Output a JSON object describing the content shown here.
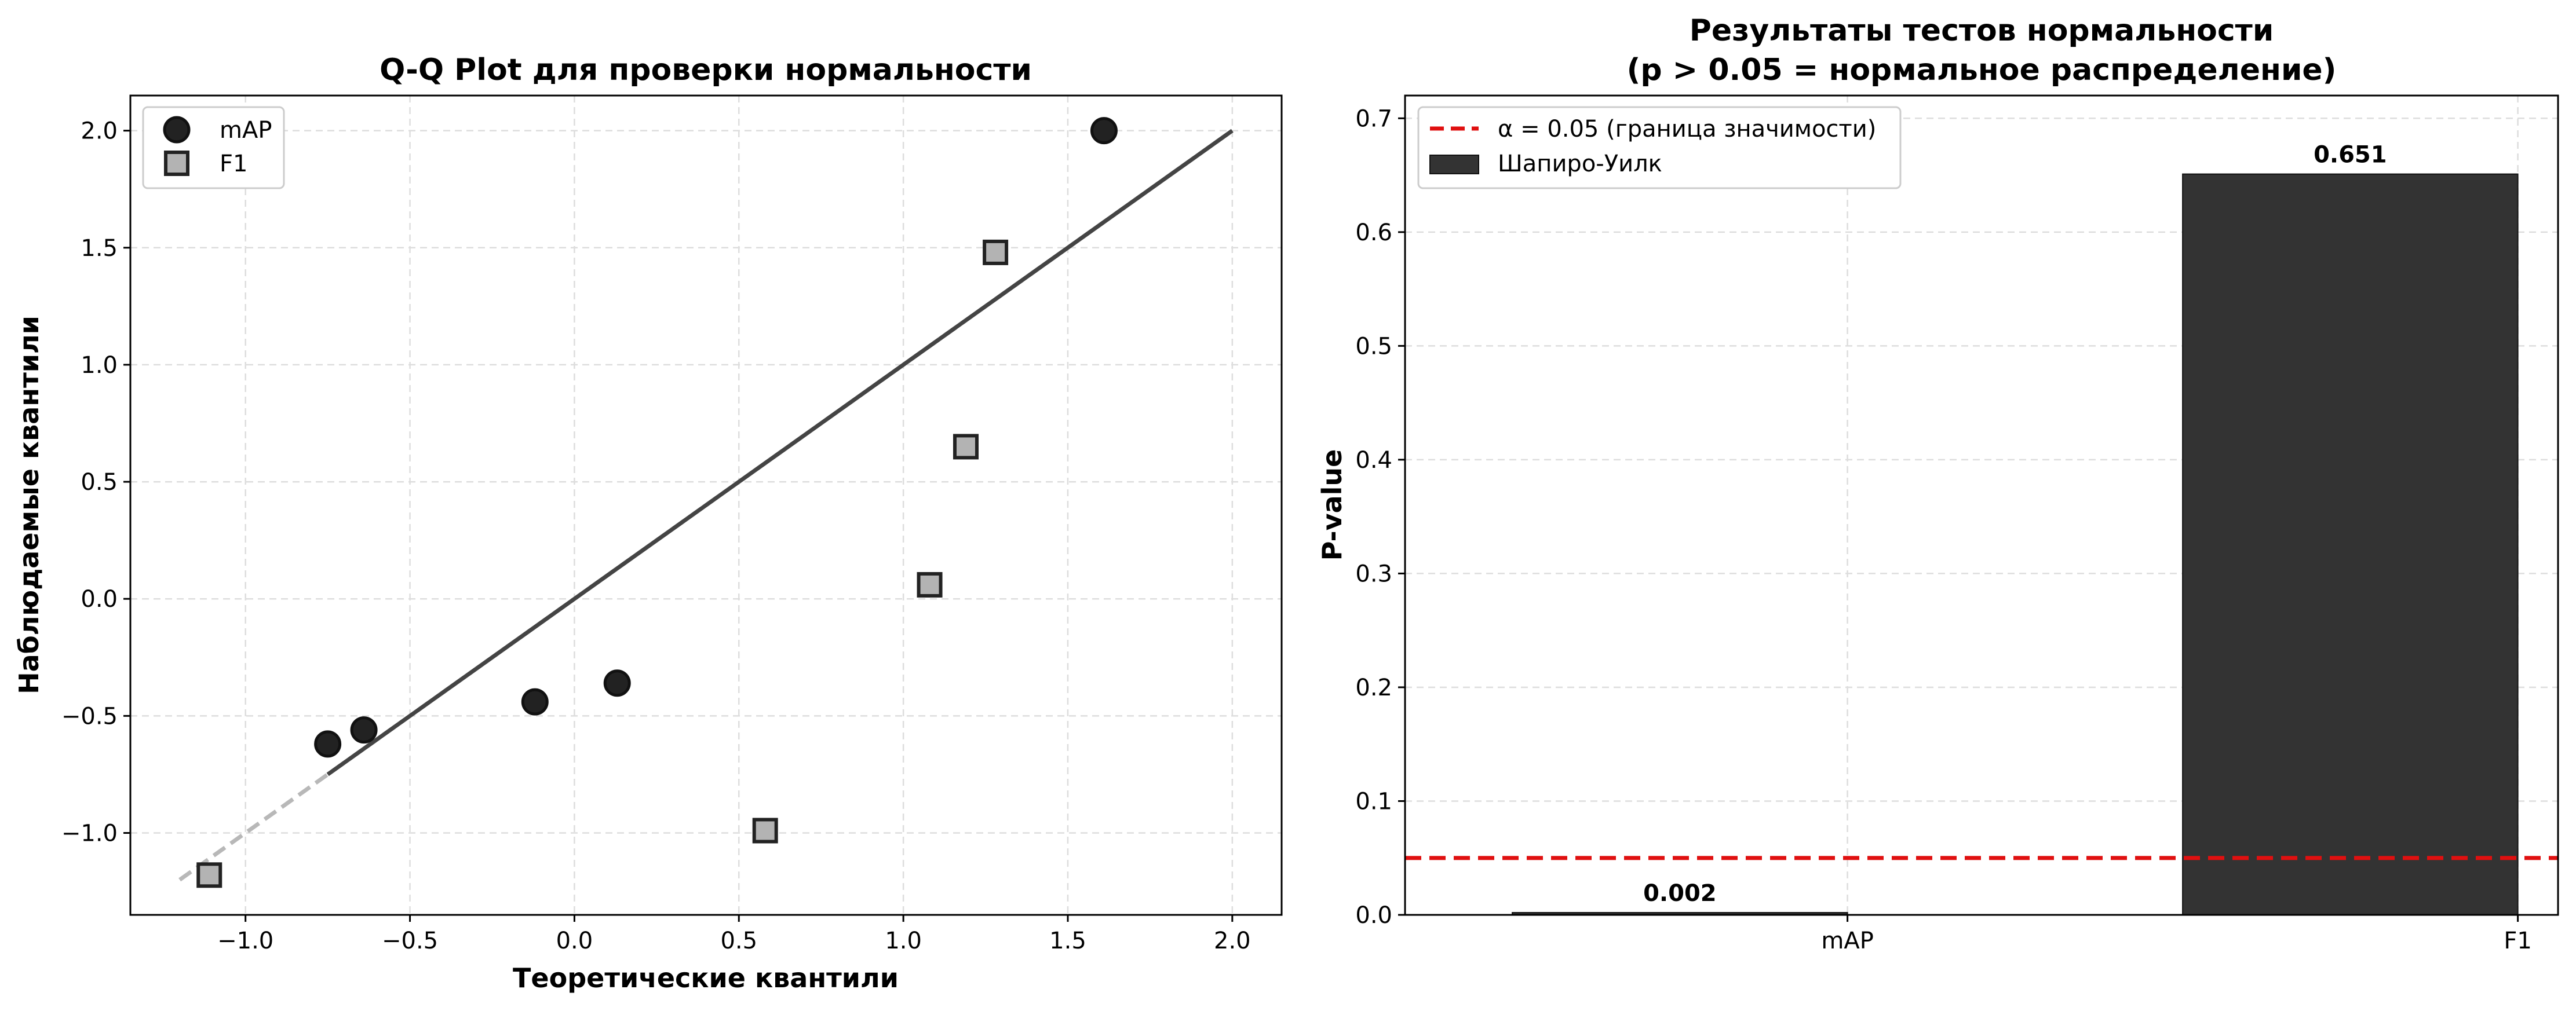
{
  "chart_data": [
    {
      "type": "scatter",
      "title": "Q-Q Plot для проверки нормальности",
      "xlabel": "Теоретические квантили",
      "ylabel": "Наблюдаемые квантили",
      "xlim": [
        -1.35,
        2.15
      ],
      "ylim": [
        -1.35,
        2.15
      ],
      "xticks": [
        -1.0,
        -0.5,
        0.0,
        0.5,
        1.0,
        1.5,
        2.0
      ],
      "xtick_labels": [
        "−1.0",
        "−0.5",
        "0.0",
        "0.5",
        "1.0",
        "1.5",
        "2.0"
      ],
      "yticks": [
        -1.0,
        -0.5,
        0.0,
        0.5,
        1.0,
        1.5,
        2.0
      ],
      "ytick_labels": [
        "−1.0",
        "−0.5",
        "0.0",
        "0.5",
        "1.0",
        "1.5",
        "2.0"
      ],
      "grid": true,
      "legend_position": "top-left",
      "series": [
        {
          "name": "mAP",
          "marker": "circle",
          "color": "#222222",
          "edge_color": "#111111",
          "x": [
            -0.75,
            -0.64,
            -0.12,
            0.13,
            1.61
          ],
          "y": [
            -0.62,
            -0.56,
            -0.44,
            -0.36,
            2.0
          ]
        },
        {
          "name": "F1",
          "marker": "square",
          "color": "#b3b3b3",
          "edge_color": "#222222",
          "x": [
            -1.11,
            0.58,
            1.08,
            1.19,
            1.28
          ],
          "y": [
            -1.18,
            -0.99,
            0.06,
            0.65,
            1.48
          ]
        }
      ],
      "reference_lines": [
        {
          "x": [
            -1.2,
            2.0
          ],
          "y": [
            -1.2,
            2.0
          ],
          "color": "#b8b8b8",
          "style": "dashed"
        },
        {
          "x": [
            -0.75,
            2.0
          ],
          "y": [
            -0.75,
            2.0
          ],
          "color": "#444444",
          "style": "solid"
        }
      ]
    },
    {
      "type": "bar",
      "title": "Результаты тестов нормальности",
      "subtitle": "(p > 0.05 = нормальное распределение)",
      "xlabel": "",
      "ylabel": "P-value",
      "categories": [
        "mAP",
        "F1"
      ],
      "ylim": [
        0,
        0.72
      ],
      "yticks": [
        0.0,
        0.1,
        0.2,
        0.3,
        0.4,
        0.5,
        0.6,
        0.7
      ],
      "ytick_labels": [
        "0.0",
        "0.1",
        "0.2",
        "0.3",
        "0.4",
        "0.5",
        "0.6",
        "0.7"
      ],
      "grid": true,
      "legend_position": "top-left",
      "series": [
        {
          "name": "Шапиро-Уилк",
          "values": [
            0.002,
            0.651
          ],
          "labels": [
            "0.002",
            "0.651"
          ],
          "color": "#333333"
        }
      ],
      "threshold": {
        "value": 0.05,
        "label": "α = 0.05 (граница значимости)",
        "color": "#e01010",
        "style": "dashed"
      }
    }
  ]
}
